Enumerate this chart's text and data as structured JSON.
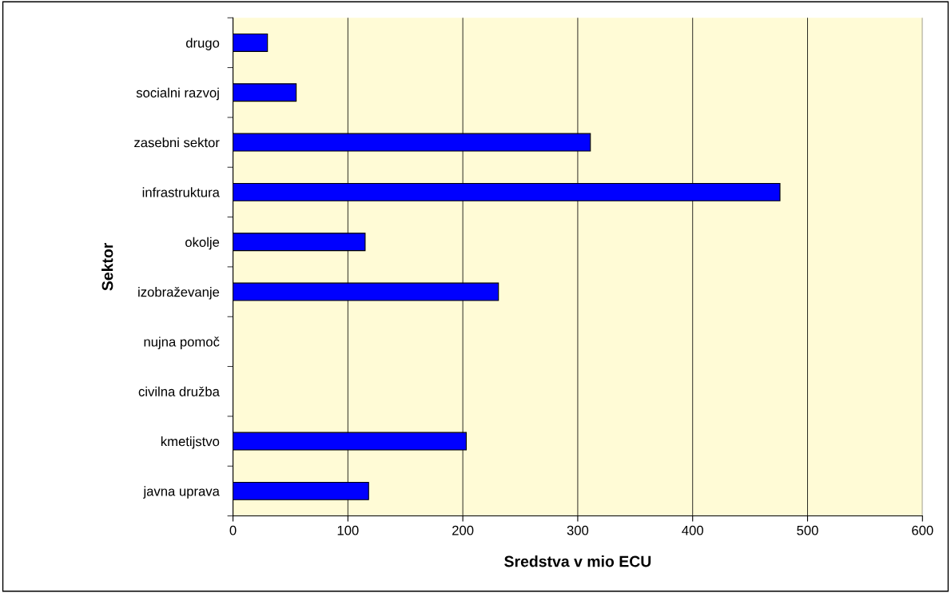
{
  "chart_data": {
    "type": "bar",
    "orientation": "horizontal",
    "xlabel": "Sredstva v mio ECU",
    "ylabel": "Sektor",
    "categories": [
      "drugo",
      "socialni razvoj",
      "zasebni sektor",
      "infrastruktura",
      "okolje",
      "izobraževanje",
      "nujna pomoč",
      "civilna družba",
      "kmetijstvo",
      "javna uprava"
    ],
    "values": [
      30,
      55,
      311,
      476,
      115,
      231,
      null,
      null,
      203,
      118
    ],
    "color": "#0000ff",
    "xlim": [
      0,
      600
    ],
    "xticks": [
      0,
      100,
      200,
      300,
      400,
      500,
      600
    ],
    "grid": "x",
    "legend": false
  }
}
